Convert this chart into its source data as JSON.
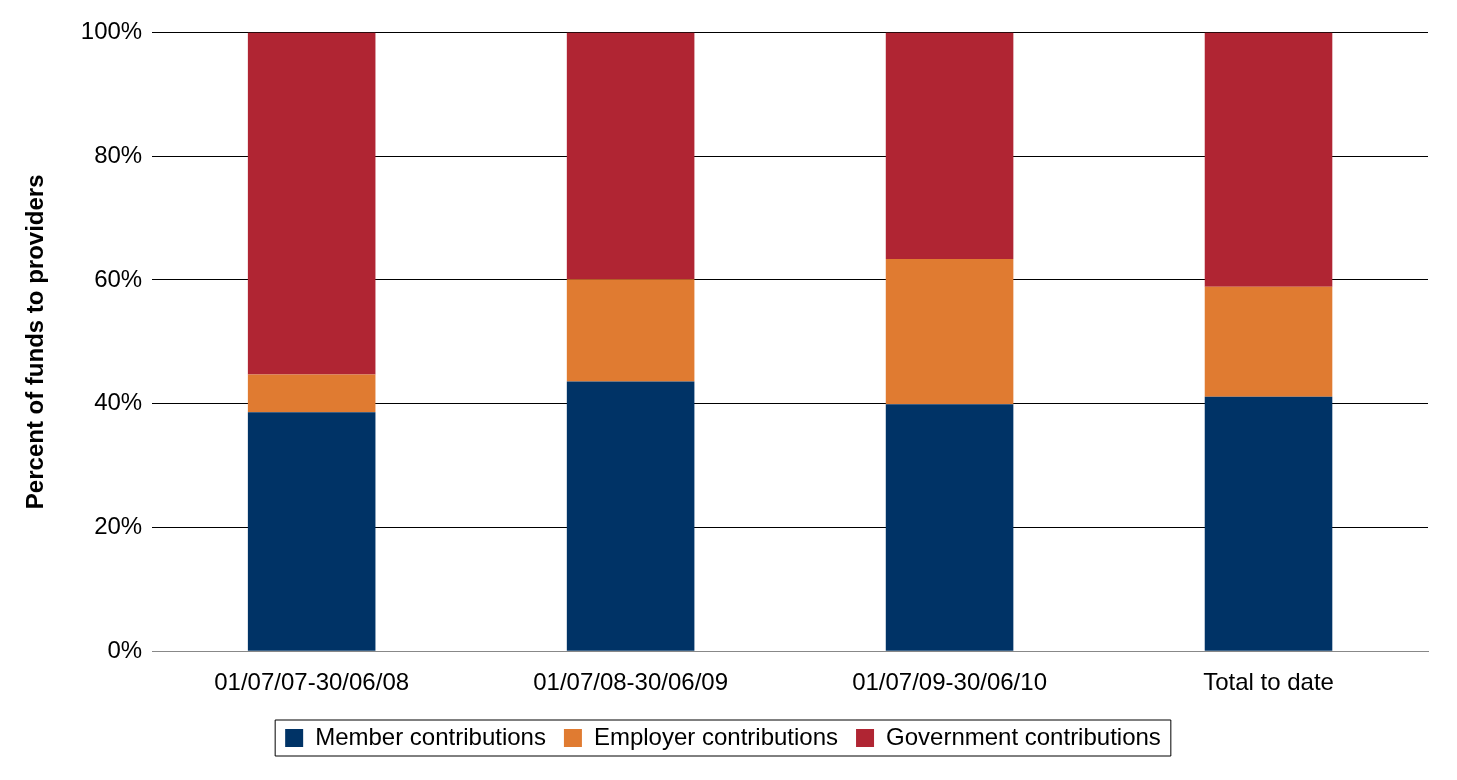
{
  "chart_data": {
    "type": "bar",
    "stacked": true,
    "ylabel": "Percent of funds to providers",
    "categories": [
      "01/07/07-30/06/08",
      "01/07/08-30/06/09",
      "01/07/09-30/06/10",
      "Total to date"
    ],
    "series": [
      {
        "name": "Member contributions",
        "color": "#003366",
        "values": [
          38.6,
          43.6,
          39.9,
          41.1
        ]
      },
      {
        "name": "Employer contributions",
        "color": "#e07b31",
        "values": [
          6.1,
          16.5,
          23.5,
          17.8
        ]
      },
      {
        "name": "Government contributions",
        "color": "#b02533",
        "values": [
          55.3,
          39.9,
          36.6,
          41.1
        ]
      }
    ],
    "ylim": [
      0,
      100
    ],
    "yticks": [
      {
        "value": 0,
        "label": "0%"
      },
      {
        "value": 20,
        "label": "20%"
      },
      {
        "value": 40,
        "label": "40%"
      },
      {
        "value": 60,
        "label": "60%"
      },
      {
        "value": 80,
        "label": "80%"
      },
      {
        "value": 100,
        "label": "100%"
      }
    ],
    "grid": "y",
    "legend": "bottom"
  }
}
